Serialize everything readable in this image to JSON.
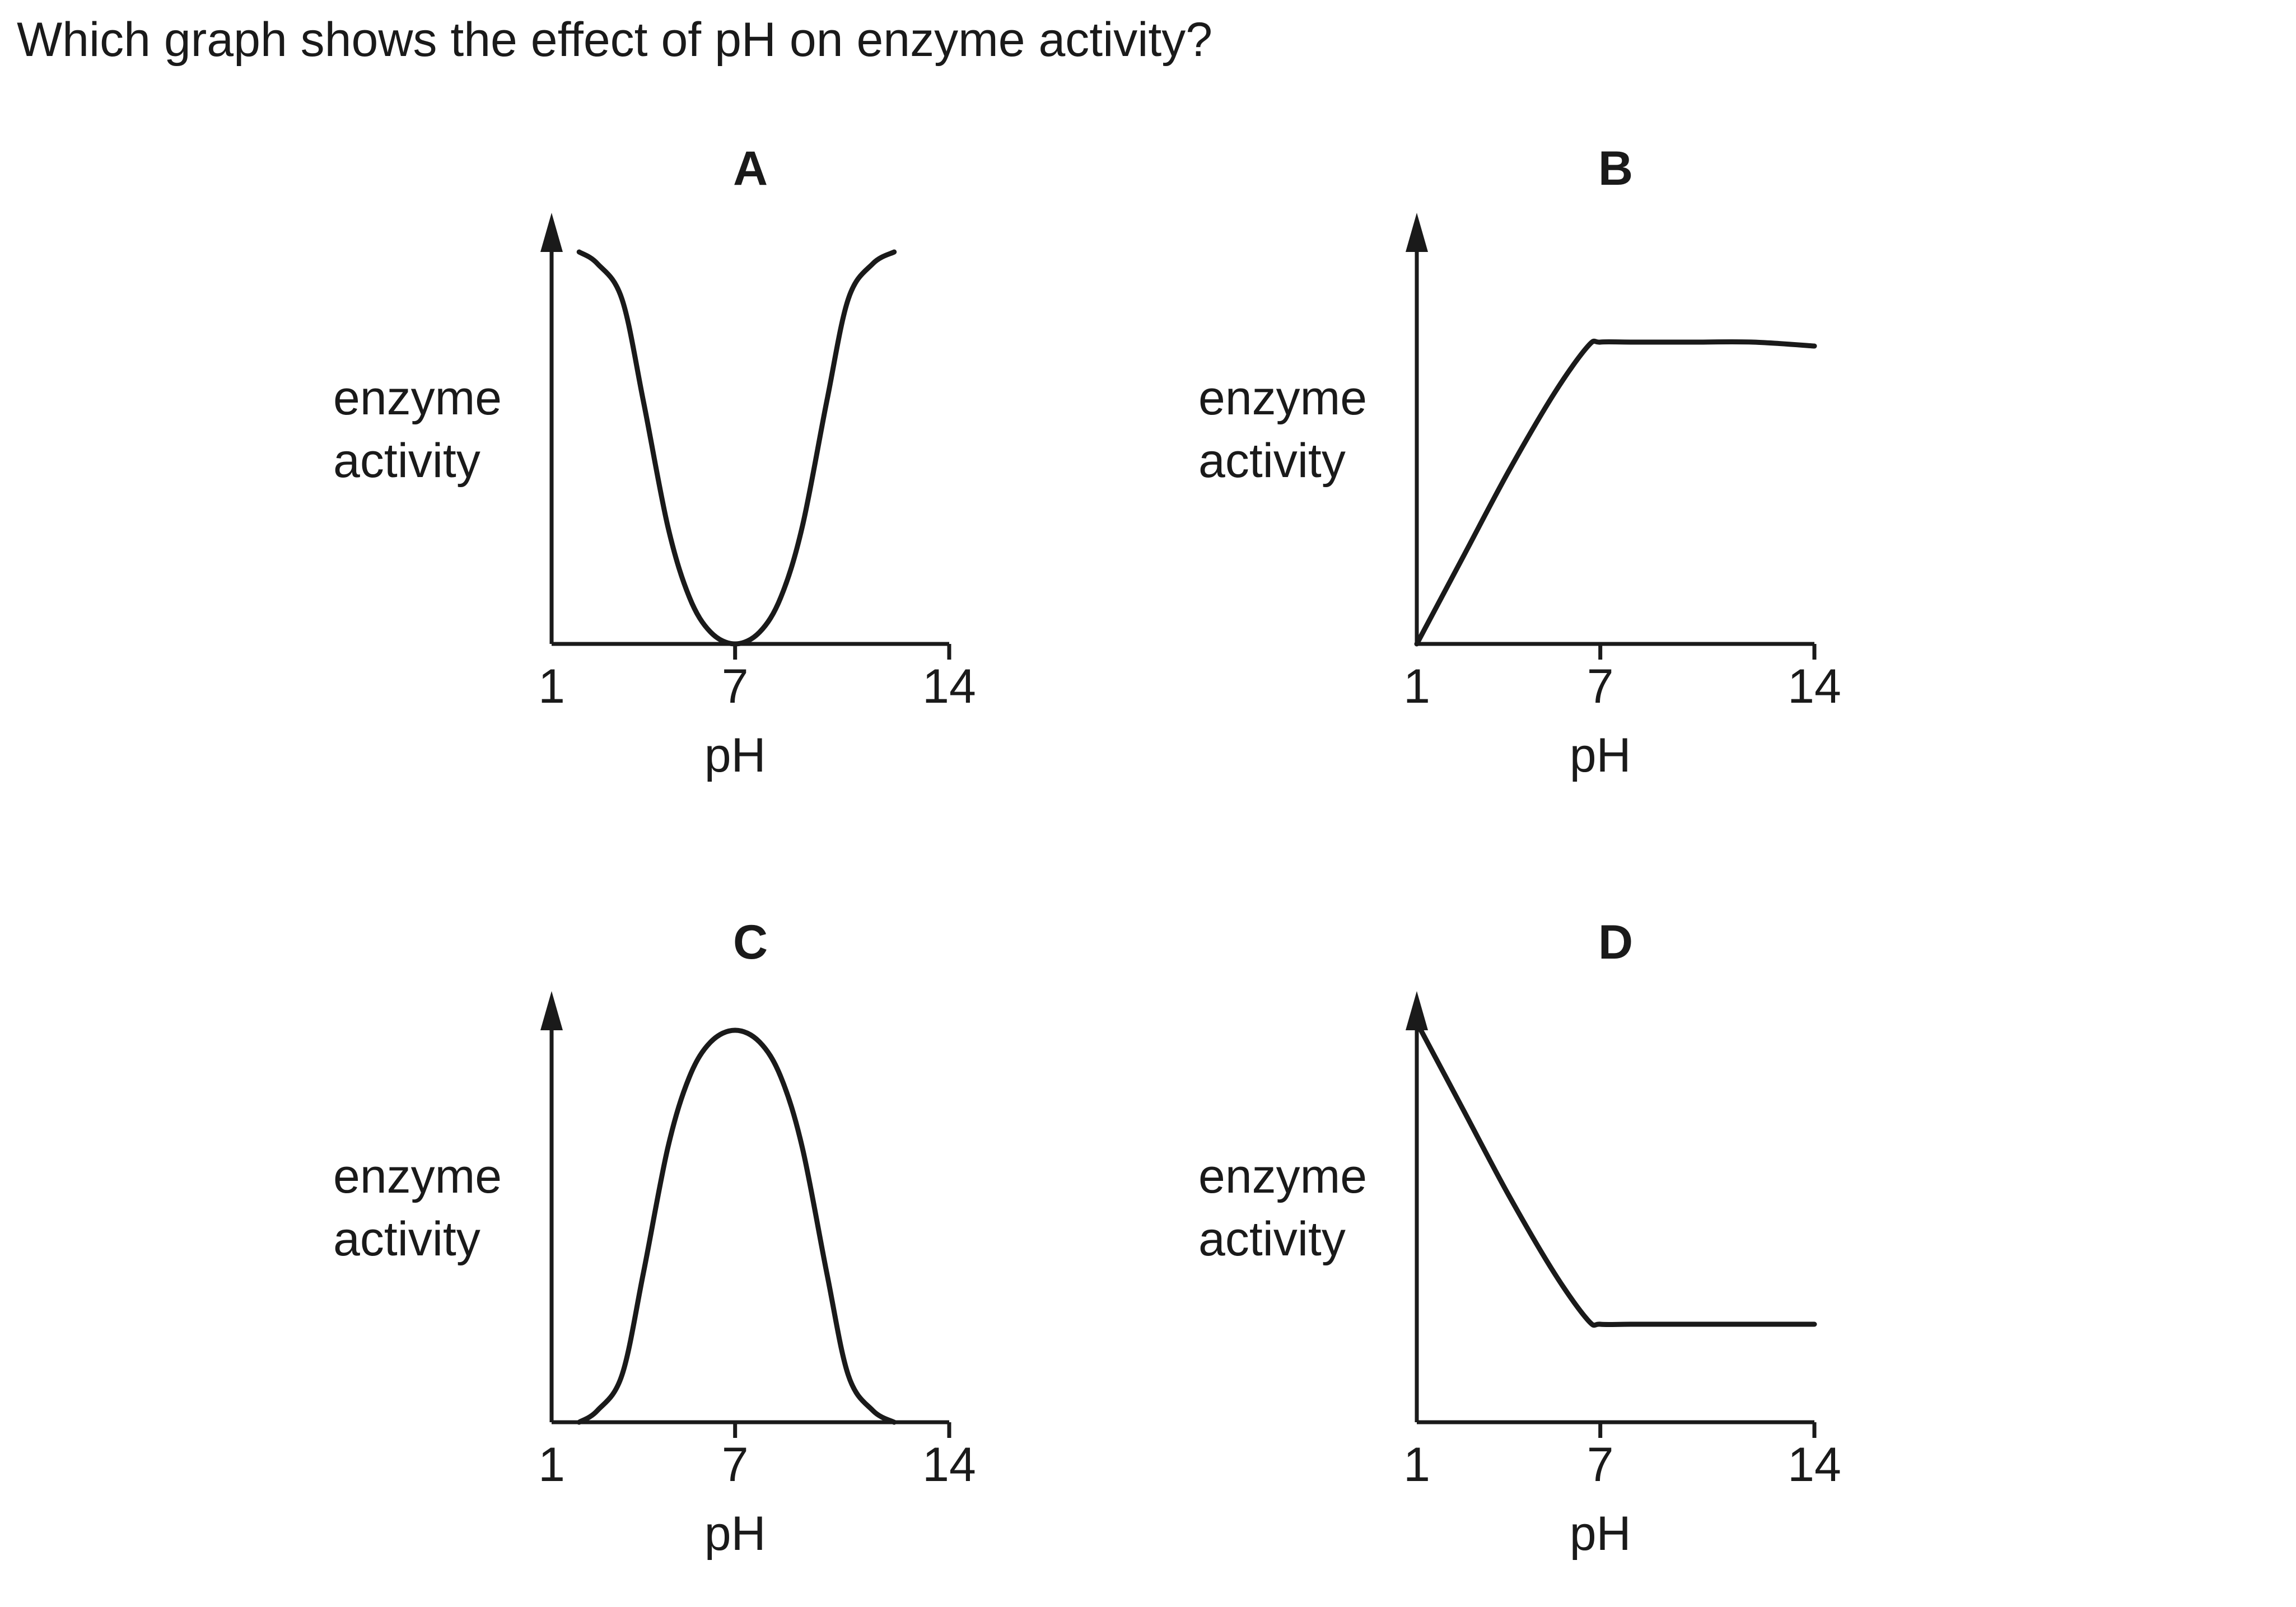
{
  "question": "Which graph shows the effect of pH on enzyme activity?",
  "chart_data": [
    {
      "type": "line",
      "panel": "A",
      "ylabel": [
        "enzyme",
        "activity"
      ],
      "xlabel": "pH",
      "xticks": [
        "1",
        "7",
        "14"
      ],
      "xlim": [
        1,
        14
      ],
      "ylim": [
        0,
        1
      ],
      "series": [
        {
          "x": [
            1.9,
            2.5,
            3.3,
            4.0,
            4.8,
            5.5,
            6.2,
            7.0,
            7.8,
            8.5,
            9.2,
            10.0,
            10.7,
            11.5,
            12.2
          ],
          "y": [
            1.0,
            0.97,
            0.88,
            0.62,
            0.3,
            0.12,
            0.03,
            0.0,
            0.03,
            0.12,
            0.3,
            0.62,
            0.88,
            0.97,
            1.0
          ]
        }
      ]
    },
    {
      "type": "line",
      "panel": "B",
      "ylabel": [
        "enzyme",
        "activity"
      ],
      "xlabel": "pH",
      "xticks": [
        "1",
        "7",
        "14"
      ],
      "xlim": [
        1,
        14
      ],
      "ylim": [
        0,
        1
      ],
      "series": [
        {
          "x": [
            1.0,
            2.5,
            4.0,
            5.5,
            6.6,
            7.0,
            8.0,
            10.0,
            12.0,
            14.0
          ],
          "y": [
            0.0,
            0.22,
            0.44,
            0.64,
            0.76,
            0.77,
            0.77,
            0.77,
            0.77,
            0.76
          ]
        }
      ]
    },
    {
      "type": "line",
      "panel": "C",
      "ylabel": [
        "enzyme",
        "activity"
      ],
      "xlabel": "pH",
      "xticks": [
        "1",
        "7",
        "14"
      ],
      "xlim": [
        1,
        14
      ],
      "ylim": [
        0,
        1
      ],
      "series": [
        {
          "x": [
            1.9,
            2.5,
            3.3,
            4.0,
            4.8,
            5.5,
            6.2,
            7.0,
            7.8,
            8.5,
            9.2,
            10.0,
            10.7,
            11.5,
            12.2
          ],
          "y": [
            0.0,
            0.03,
            0.12,
            0.38,
            0.7,
            0.88,
            0.97,
            1.0,
            0.97,
            0.88,
            0.7,
            0.38,
            0.12,
            0.03,
            0.0
          ]
        }
      ]
    },
    {
      "type": "line",
      "panel": "D",
      "ylabel": [
        "enzyme",
        "activity"
      ],
      "xlabel": "pH",
      "xticks": [
        "1",
        "7",
        "14"
      ],
      "xlim": [
        1,
        14
      ],
      "ylim": [
        0,
        1
      ],
      "series": [
        {
          "x": [
            1.0,
            2.5,
            4.0,
            5.5,
            6.6,
            7.0,
            8.0,
            10.0,
            12.0,
            14.0
          ],
          "y": [
            1.02,
            0.8,
            0.58,
            0.38,
            0.26,
            0.25,
            0.25,
            0.25,
            0.25,
            0.25
          ]
        }
      ]
    }
  ]
}
